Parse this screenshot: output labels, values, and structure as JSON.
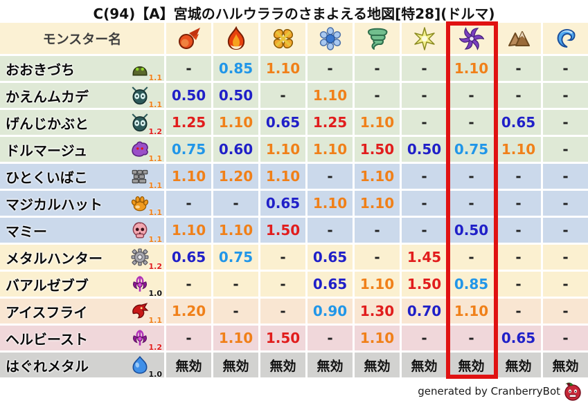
{
  "chart_data": {
    "type": "table",
    "title": "C(94)【A】宮城のハルウララのさまよえる地図[特28](ドルマ)",
    "name_column_header": "モンスター名",
    "element_columns": [
      {
        "icon": "fireball-icon"
      },
      {
        "icon": "flame-icon"
      },
      {
        "icon": "explosion-icon"
      },
      {
        "icon": "ice-icon"
      },
      {
        "icon": "wind-icon"
      },
      {
        "icon": "light-icon"
      },
      {
        "icon": "dark-icon",
        "highlighted": true
      },
      {
        "icon": "earth-icon"
      },
      {
        "icon": "water-icon"
      }
    ],
    "rows": [
      {
        "name": "おおきづち",
        "icon": "helmet-monster-icon",
        "base_multiplier": "1.1",
        "family": "green",
        "values": [
          "-",
          "0.85",
          "1.10",
          "-",
          "-",
          "-",
          "1.10",
          "-",
          "-"
        ]
      },
      {
        "name": "かえんムカデ",
        "icon": "bug-monster-icon",
        "base_multiplier": "1.1",
        "family": "green",
        "values": [
          "0.50",
          "0.50",
          "-",
          "1.10",
          "-",
          "-",
          "-",
          "-",
          "-"
        ]
      },
      {
        "name": "げんじかぶと",
        "icon": "bug-monster-icon",
        "base_multiplier": "1.2",
        "family": "green",
        "values": [
          "1.25",
          "1.10",
          "0.65",
          "1.25",
          "1.10",
          "-",
          "-",
          "0.65",
          "-"
        ]
      },
      {
        "name": "ドルマージュ",
        "icon": "ghost-monster-icon",
        "base_multiplier": "1.1",
        "family": "green",
        "values": [
          "0.75",
          "0.60",
          "1.10",
          "1.10",
          "1.50",
          "0.50",
          "0.75",
          "1.10",
          "-"
        ]
      },
      {
        "name": "ひとくいばこ",
        "icon": "brick-box-monster-icon",
        "base_multiplier": "1.1",
        "family": "blue",
        "values": [
          "1.10",
          "1.20",
          "1.10",
          "-",
          "1.10",
          "-",
          "-",
          "-",
          "-"
        ]
      },
      {
        "name": "マジカルハット",
        "icon": "paw-monster-icon",
        "base_multiplier": "1.1",
        "family": "blue",
        "values": [
          "-",
          "-",
          "0.65",
          "1.10",
          "1.10",
          "-",
          "-",
          "-",
          "-"
        ]
      },
      {
        "name": "マミー",
        "icon": "skull-monster-icon",
        "base_multiplier": "1.1",
        "family": "blue",
        "values": [
          "1.10",
          "1.10",
          "1.50",
          "-",
          "-",
          "-",
          "0.50",
          "-",
          "-"
        ]
      },
      {
        "name": "メタルハンター",
        "icon": "gear-monster-icon",
        "base_multiplier": "1.2",
        "family": "cream",
        "values": [
          "0.65",
          "0.75",
          "-",
          "0.65",
          "-",
          "1.45",
          "-",
          "-",
          "-"
        ]
      },
      {
        "name": "バアルゼブブ",
        "icon": "demon-monster-icon",
        "base_multiplier": "1.0",
        "family": "cream",
        "values": [
          "-",
          "-",
          "-",
          "0.65",
          "1.10",
          "1.50",
          "0.85",
          "-",
          "-"
        ]
      },
      {
        "name": "アイスフライ",
        "icon": "dragon-monster-icon",
        "base_multiplier": "1.1",
        "family": "peach",
        "values": [
          "1.20",
          "-",
          "-",
          "0.90",
          "1.30",
          "0.70",
          "1.10",
          "-",
          "-"
        ]
      },
      {
        "name": "ヘルビースト",
        "icon": "demon-monster-icon",
        "base_multiplier": "1.2",
        "family": "pink",
        "values": [
          "-",
          "1.10",
          "1.50",
          "-",
          "1.10",
          "-",
          "-",
          "0.65",
          "-"
        ]
      },
      {
        "name": "はぐれメタル",
        "icon": "slime-monster-icon",
        "base_multiplier": "1.0",
        "family": "gray",
        "values": [
          "無効",
          "無効",
          "無効",
          "無効",
          "無効",
          "無効",
          "無効",
          "無効",
          "無効"
        ]
      }
    ]
  },
  "colors": {
    "header_bg": "#FBF1D4",
    "family_green": "#DFE9D6",
    "family_blue": "#CBD9EB",
    "family_cream": "#FBF0D0",
    "family_peach": "#F9E6D2",
    "family_pink": "#F0D7DA",
    "family_gray": "#D2D2D0",
    "red": "#E11D1D",
    "orange": "#F08019",
    "light_blue": "#2196E8",
    "dark_blue": "#2020C8",
    "highlight_box": "#E01212"
  },
  "footer": {
    "credit": "generated by CranberryBot",
    "icon": "cranberry-bot-icon"
  }
}
